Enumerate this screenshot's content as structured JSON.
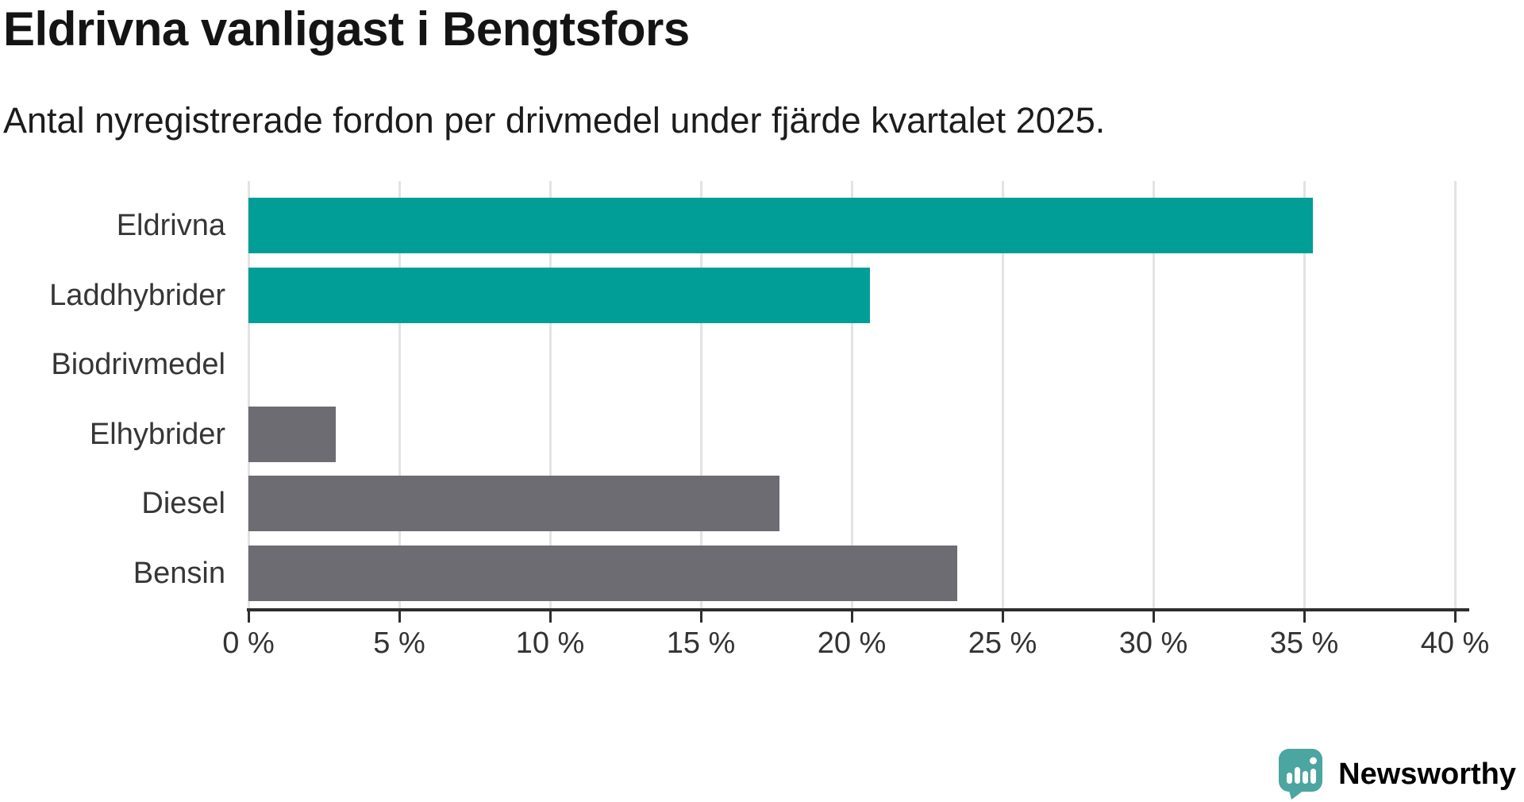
{
  "title": "Eldrivna vanligast i Bengtsfors",
  "subtitle": "Antal nyregistrerade fordon per drivmedel under fjärde kvartalet 2025.",
  "branding": {
    "name": "Newsworthy",
    "logo_icon": "newsworthy-speech-bubble-bar-chart-icon",
    "color": "#4ba5a0"
  },
  "colors": {
    "highlight_bar": "#009e96",
    "default_bar": "#6c6c72",
    "gridline": "#e3e3e3",
    "axis": "#2e2e2e",
    "title_text": "#141414",
    "subtitle_text": "#1c1c1c",
    "label_text": "#363636"
  },
  "chart_data": {
    "type": "bar",
    "orientation": "horizontal",
    "title": "Eldrivna vanligast i Bengtsfors",
    "subtitle": "Antal nyregistrerade fordon per drivmedel under fjärde kvartalet 2025.",
    "categories": [
      "Eldrivna",
      "Laddhybrider",
      "Biodrivmedel",
      "Elhybrider",
      "Diesel",
      "Bensin"
    ],
    "values": [
      35.3,
      20.6,
      0,
      2.9,
      17.6,
      23.5
    ],
    "unit": "%",
    "bar_colors": [
      "#009e96",
      "#009e96",
      "#6c6c72",
      "#6c6c72",
      "#6c6c72",
      "#6c6c72"
    ],
    "xlabel": "",
    "ylabel": "",
    "xlim": [
      0,
      40
    ],
    "x_ticks": [
      0,
      5,
      10,
      15,
      20,
      25,
      30,
      35,
      40
    ],
    "x_tick_suffix": " %",
    "grid": true,
    "legend": false
  }
}
